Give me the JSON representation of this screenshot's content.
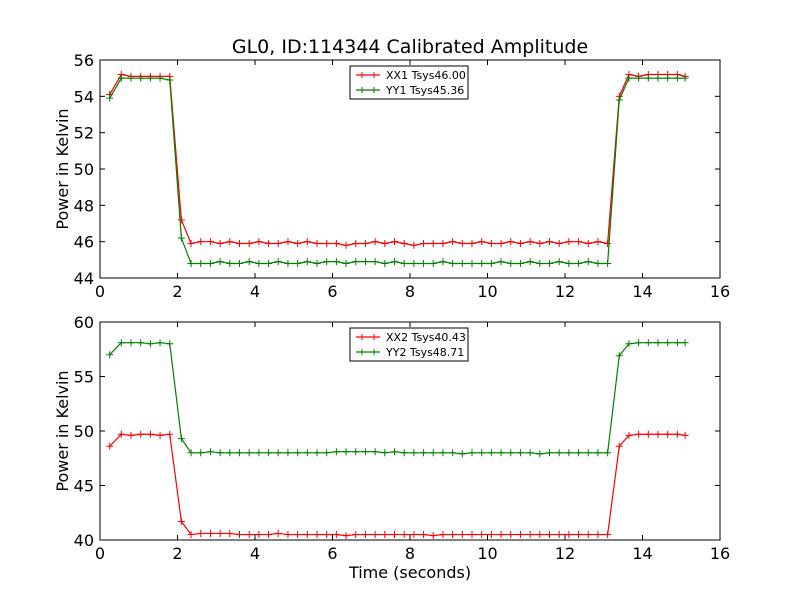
{
  "title": "GL0, ID:114344 Calibrated Amplitude",
  "xlabel": "Time (seconds)",
  "chart_data": [
    {
      "type": "line",
      "ylabel": "Power in Kelvin",
      "xlim": [
        0,
        16
      ],
      "ylim": [
        44,
        56
      ],
      "xticks": [
        "0",
        "2",
        "4",
        "6",
        "8",
        "10",
        "12",
        "14",
        "16"
      ],
      "yticks": [
        "44",
        "46",
        "48",
        "50",
        "52",
        "54",
        "56"
      ],
      "legend_position": "top-center",
      "x": [
        0.25,
        0.55,
        0.8,
        1.05,
        1.3,
        1.55,
        1.8,
        2.1,
        2.35,
        2.6,
        2.85,
        3.1,
        3.35,
        3.6,
        3.85,
        4.1,
        4.35,
        4.6,
        4.85,
        5.1,
        5.35,
        5.6,
        5.85,
        6.1,
        6.35,
        6.6,
        6.85,
        7.1,
        7.35,
        7.6,
        7.85,
        8.1,
        8.35,
        8.6,
        8.85,
        9.1,
        9.35,
        9.6,
        9.85,
        10.1,
        10.35,
        10.6,
        10.85,
        11.1,
        11.35,
        11.6,
        11.85,
        12.1,
        12.35,
        12.6,
        12.85,
        13.1,
        13.4,
        13.65,
        13.9,
        14.15,
        14.4,
        14.65,
        14.9,
        15.1
      ],
      "series": [
        {
          "name": "XX1 Tsys46.00",
          "color": "#ff0000",
          "values": [
            54.1,
            55.2,
            55.1,
            55.1,
            55.1,
            55.1,
            55.1,
            47.2,
            45.9,
            46.0,
            46.0,
            45.9,
            46.0,
            45.9,
            45.9,
            46.0,
            45.9,
            45.9,
            46.0,
            45.9,
            46.0,
            45.9,
            45.9,
            45.9,
            45.8,
            45.9,
            45.9,
            46.0,
            45.9,
            46.0,
            45.9,
            45.8,
            45.9,
            45.9,
            45.9,
            46.0,
            45.9,
            45.9,
            46.0,
            45.9,
            45.9,
            46.0,
            45.9,
            46.0,
            45.9,
            46.0,
            45.9,
            46.0,
            46.0,
            45.9,
            46.0,
            45.9,
            54.0,
            55.2,
            55.1,
            55.2,
            55.2,
            55.2,
            55.2,
            55.1
          ]
        },
        {
          "name": "YY1 Tsys45.36",
          "color": "#008000",
          "values": [
            53.9,
            55.0,
            55.0,
            55.0,
            55.0,
            55.0,
            54.9,
            46.2,
            44.8,
            44.8,
            44.8,
            44.9,
            44.8,
            44.8,
            44.9,
            44.8,
            44.8,
            44.9,
            44.8,
            44.8,
            44.9,
            44.8,
            44.9,
            44.9,
            44.8,
            44.9,
            44.9,
            44.9,
            44.8,
            44.9,
            44.8,
            44.8,
            44.8,
            44.8,
            44.9,
            44.8,
            44.8,
            44.8,
            44.8,
            44.8,
            44.9,
            44.8,
            44.8,
            44.9,
            44.8,
            44.8,
            44.9,
            44.8,
            44.8,
            44.9,
            44.8,
            44.8,
            53.8,
            55.0,
            55.0,
            55.0,
            55.0,
            55.0,
            55.0,
            55.0
          ]
        }
      ]
    },
    {
      "type": "line",
      "ylabel": "Power in Kelvin",
      "xlabel": "Time (seconds)",
      "xlim": [
        0,
        16
      ],
      "ylim": [
        40,
        60
      ],
      "xticks": [
        "0",
        "2",
        "4",
        "6",
        "8",
        "10",
        "12",
        "14",
        "16"
      ],
      "yticks": [
        "40",
        "45",
        "50",
        "55",
        "60"
      ],
      "legend_position": "top-center",
      "x": [
        0.25,
        0.55,
        0.8,
        1.05,
        1.3,
        1.55,
        1.8,
        2.1,
        2.35,
        2.6,
        2.85,
        3.1,
        3.35,
        3.6,
        3.85,
        4.1,
        4.35,
        4.6,
        4.85,
        5.1,
        5.35,
        5.6,
        5.85,
        6.1,
        6.35,
        6.6,
        6.85,
        7.1,
        7.35,
        7.6,
        7.85,
        8.1,
        8.35,
        8.6,
        8.85,
        9.1,
        9.35,
        9.6,
        9.85,
        10.1,
        10.35,
        10.6,
        10.85,
        11.1,
        11.35,
        11.6,
        11.85,
        12.1,
        12.35,
        12.6,
        12.85,
        13.1,
        13.4,
        13.65,
        13.9,
        14.15,
        14.4,
        14.65,
        14.9,
        15.1
      ],
      "series": [
        {
          "name": "XX2 Tsys40.43",
          "color": "#ff0000",
          "values": [
            48.6,
            49.7,
            49.6,
            49.7,
            49.7,
            49.6,
            49.7,
            41.7,
            40.5,
            40.6,
            40.6,
            40.6,
            40.6,
            40.5,
            40.5,
            40.5,
            40.5,
            40.6,
            40.5,
            40.5,
            40.5,
            40.5,
            40.5,
            40.5,
            40.4,
            40.5,
            40.5,
            40.5,
            40.5,
            40.5,
            40.5,
            40.5,
            40.5,
            40.4,
            40.5,
            40.5,
            40.5,
            40.5,
            40.5,
            40.5,
            40.5,
            40.5,
            40.5,
            40.5,
            40.5,
            40.5,
            40.5,
            40.5,
            40.5,
            40.5,
            40.5,
            40.5,
            48.6,
            49.6,
            49.7,
            49.7,
            49.7,
            49.7,
            49.7,
            49.6
          ]
        },
        {
          "name": "YY2 Tsys48.71",
          "color": "#008000",
          "values": [
            57.0,
            58.1,
            58.1,
            58.1,
            58.0,
            58.1,
            58.0,
            49.3,
            48.0,
            48.0,
            48.1,
            48.0,
            48.0,
            48.0,
            48.0,
            48.0,
            48.0,
            48.0,
            48.0,
            48.0,
            48.0,
            48.0,
            48.0,
            48.1,
            48.1,
            48.1,
            48.1,
            48.1,
            48.0,
            48.1,
            48.0,
            48.0,
            48.0,
            48.0,
            48.0,
            48.0,
            47.9,
            48.0,
            48.0,
            48.0,
            48.0,
            48.0,
            48.0,
            48.0,
            47.9,
            48.0,
            48.0,
            48.0,
            48.0,
            48.0,
            48.0,
            48.0,
            56.9,
            58.0,
            58.1,
            58.1,
            58.1,
            58.1,
            58.1,
            58.1
          ]
        }
      ]
    }
  ]
}
